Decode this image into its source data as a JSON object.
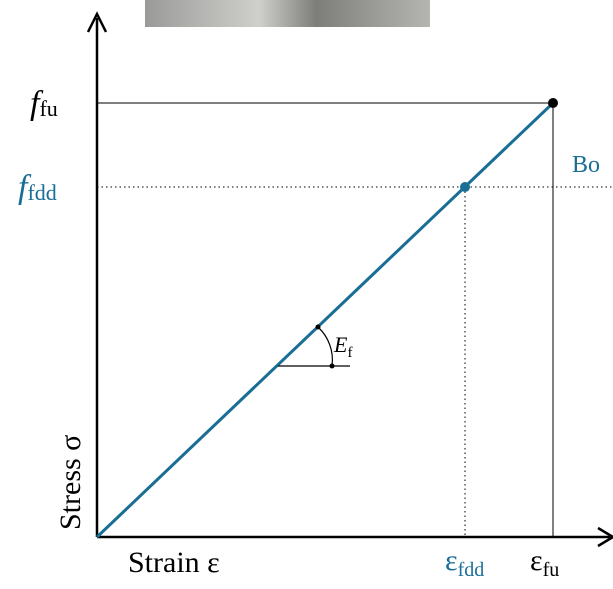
{
  "axes": {
    "y_label": "Stress σ",
    "x_label": "Strain ε"
  },
  "labels": {
    "f_fu": {
      "symbol": "f",
      "subscript": "fu"
    },
    "f_fdd": {
      "symbol": "f",
      "subscript": "fdd"
    },
    "eps_fdd": {
      "symbol": "ε",
      "subscript": "fdd"
    },
    "eps_fu": {
      "symbol": "ε",
      "subscript": "fu"
    },
    "modulus": {
      "symbol": "E",
      "subscript": "f"
    },
    "side_note": "Bo"
  }
}
